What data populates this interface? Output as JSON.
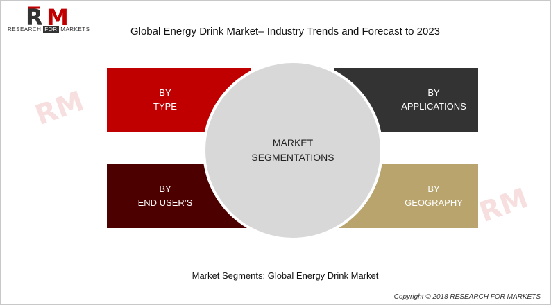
{
  "logo": {
    "letters": "RM",
    "line_prefix": "RESEARCH ",
    "line_for": "FOR",
    "line_suffix": " MARKETS"
  },
  "title": "Global Energy Drink Market– Industry Trends and Forecast to 2023",
  "segments": {
    "type": {
      "line1": "BY",
      "line2": "TYPE"
    },
    "applications": {
      "line1": "BY",
      "line2": "APPLICATIONS"
    },
    "end_users": {
      "line1": "BY",
      "line2": "END USER’S"
    },
    "geography": {
      "line1": "BY",
      "line2": "GEOGRAPHY"
    }
  },
  "center": {
    "line1": "MARKET",
    "line2": "SEGMENTATIONS"
  },
  "caption": "Market Segments: Global Energy Drink Market",
  "copyright": "Copyright © 2018 RESEARCH FOR MARKETS",
  "colors": {
    "type": "#c00000",
    "applications": "#333333",
    "end_users": "#4d0000",
    "geography": "#b8a46c",
    "center": "#d8d8d8"
  }
}
